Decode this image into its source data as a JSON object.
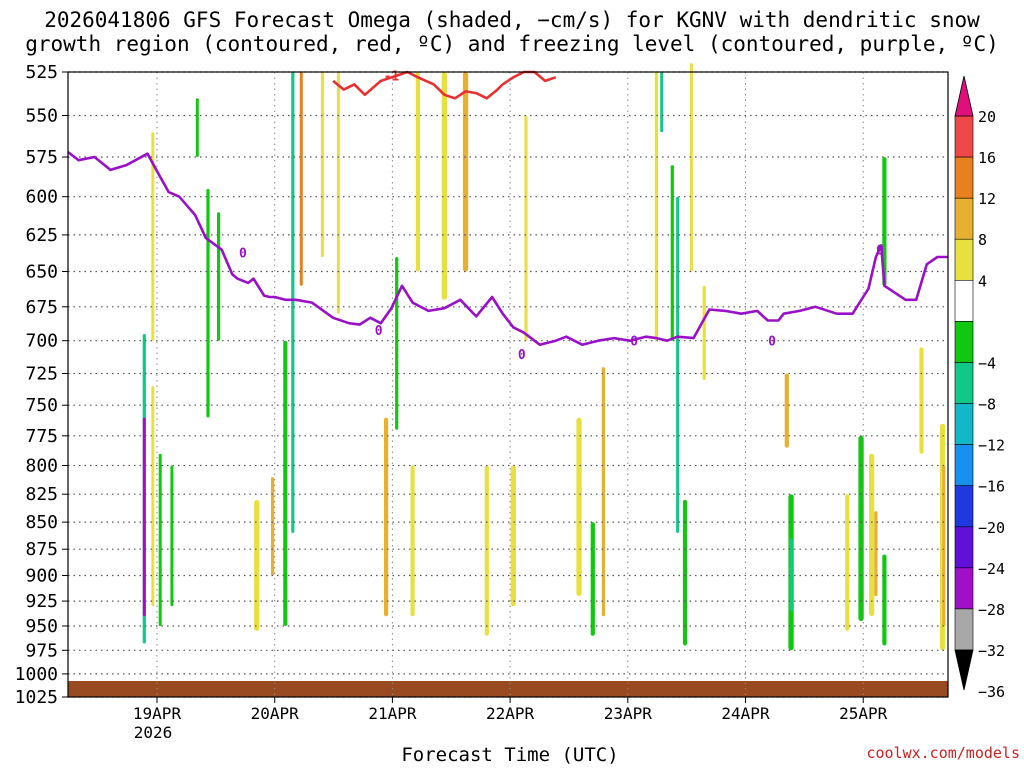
{
  "title_line1": "2026041806 GFS Forecast Omega (shaded, −cm/s) for KGNV with dendritic snow",
  "title_line2": "growth region (contoured, red, ºC) and freezing level (contoured, purple, ºC)",
  "x_axis_title": "Forecast Time (UTC)",
  "credit": "coolwx.com/models",
  "colors": {
    "snow_growth_contour": "#e83030",
    "freezing_level": "#9a10c8",
    "ground": "#9a4a20",
    "grid": "#555555"
  },
  "chart_data": {
    "type": "heatmap",
    "xlabel": "Forecast Time (UTC)",
    "ylabel": "",
    "y_axis_scale": "pressure (reversed)",
    "ylim": [
      1025,
      525
    ],
    "yticks": [
      525,
      550,
      575,
      600,
      625,
      650,
      675,
      700,
      725,
      750,
      775,
      800,
      825,
      850,
      875,
      900,
      925,
      950,
      975,
      1000,
      1025
    ],
    "xlim": [
      "18APR 06Z",
      "25APR 18Z"
    ],
    "xticks": [
      {
        "label": "19APR",
        "sublabel": "2026"
      },
      {
        "label": "20APR",
        "sublabel": ""
      },
      {
        "label": "21APR",
        "sublabel": ""
      },
      {
        "label": "22APR",
        "sublabel": ""
      },
      {
        "label": "23APR",
        "sublabel": ""
      },
      {
        "label": "24APR",
        "sublabel": ""
      },
      {
        "label": "25APR",
        "sublabel": ""
      }
    ],
    "grid": true,
    "colorbar": {
      "labels": [
        "20",
        "16",
        "12",
        "8",
        "4",
        "−4",
        "−8",
        "−12",
        "−16",
        "−20",
        "−24",
        "−28",
        "−32",
        "−36"
      ],
      "bands": [
        {
          "from": 16,
          "to": 20,
          "color": "#f04848"
        },
        {
          "from": 12,
          "to": 16,
          "color": "#e8801e"
        },
        {
          "from": 8,
          "to": 12,
          "color": "#e8b030"
        },
        {
          "from": 4,
          "to": 8,
          "color": "#e8e040"
        },
        {
          "from": -4,
          "to": 4,
          "color": "#ffffff"
        },
        {
          "from": -8,
          "to": -4,
          "color": "#10c810"
        },
        {
          "from": -12,
          "to": -8,
          "color": "#10c888"
        },
        {
          "from": -16,
          "to": -12,
          "color": "#10b8c8"
        },
        {
          "from": -20,
          "to": -16,
          "color": "#1890f0"
        },
        {
          "from": -24,
          "to": -20,
          "color": "#2038e0"
        },
        {
          "from": -28,
          "to": -24,
          "color": "#6010d8"
        },
        {
          "from": -32,
          "to": -28,
          "color": "#a010c8"
        },
        {
          "from": -36,
          "to": -32,
          "color": "#a8a8a8"
        }
      ],
      "top_arrow_color": "#e0107a",
      "bottom_arrow_color": "#000000"
    },
    "contour_labels": [
      {
        "text": "-1",
        "series": "Dendritic snow growth region",
        "x": 3.05,
        "y": 527
      },
      {
        "text": "0",
        "series": "Freezing level",
        "x": 1.65,
        "y": 637
      },
      {
        "text": "0",
        "series": "Freezing level",
        "x": 2.93,
        "y": 692
      },
      {
        "text": "0",
        "series": "Freezing level",
        "x": 4.28,
        "y": 710
      },
      {
        "text": "0",
        "series": "Freezing level",
        "x": 5.34,
        "y": 700
      },
      {
        "text": "0",
        "series": "Freezing level",
        "x": 6.64,
        "y": 700
      },
      {
        "text": "0",
        "series": "Freezing level",
        "x": 7.66,
        "y": 635
      }
    ],
    "series": [
      {
        "name": "Freezing level",
        "style": "line",
        "x": [
          0.0,
          0.1,
          0.25,
          0.4,
          0.55,
          0.75,
          0.85,
          0.95,
          1.05,
          1.2,
          1.3,
          1.45,
          1.55,
          1.6,
          1.7,
          1.75,
          1.85,
          1.9,
          1.95,
          2.05,
          2.15,
          2.3,
          2.5,
          2.65,
          2.75,
          2.85,
          2.95,
          3.05,
          3.15,
          3.25,
          3.4,
          3.55,
          3.7,
          3.85,
          4.0,
          4.1,
          4.2,
          4.3,
          4.45,
          4.6,
          4.7,
          4.85,
          5.0,
          5.15,
          5.3,
          5.45,
          5.55,
          5.65,
          5.75,
          5.9,
          6.05,
          6.2,
          6.35,
          6.5,
          6.6,
          6.7,
          6.75,
          6.9,
          7.05,
          7.25,
          7.4,
          7.55,
          7.62,
          7.67,
          7.7,
          7.78,
          7.9,
          8.0,
          8.1,
          8.2,
          8.3
        ],
        "y": [
          572,
          577,
          575,
          583,
          580,
          573,
          585,
          597,
          600,
          612,
          627,
          635,
          652,
          655,
          658,
          655,
          667,
          668,
          668,
          670,
          670,
          672,
          683,
          687,
          688,
          683,
          687,
          676,
          660,
          672,
          678,
          676,
          670,
          682,
          668,
          680,
          690,
          694,
          703,
          700,
          697,
          703,
          700,
          698,
          700,
          697,
          698,
          700,
          697,
          698,
          677,
          678,
          680,
          678,
          685,
          685,
          680,
          678,
          675,
          680,
          680,
          662,
          640,
          632,
          660,
          664,
          670,
          670,
          645,
          640,
          640
        ]
      },
      {
        "name": "Dendritic snow growth region",
        "style": "line",
        "x": [
          2.5,
          2.6,
          2.7,
          2.8,
          2.95,
          3.1,
          3.2,
          3.3,
          3.45,
          3.55,
          3.65,
          3.75,
          3.85,
          3.95,
          4.05,
          4.1,
          4.2,
          4.3,
          4.4,
          4.5,
          4.6
        ],
        "y": [
          530,
          535,
          532,
          538,
          530,
          527,
          525,
          528,
          532,
          538,
          540,
          536,
          537,
          540,
          535,
          532,
          528,
          525,
          525,
          530,
          528
        ]
      }
    ],
    "omega_regions": [
      {
        "x": 0.72,
        "y": [
          695,
          968
        ],
        "w": 0.03,
        "value": -12
      },
      {
        "x": 0.72,
        "y": [
          760,
          940
        ],
        "w": 0.018,
        "value": -30
      },
      {
        "x": 0.8,
        "y": [
          560,
          700
        ],
        "w": 0.02,
        "value": 6
      },
      {
        "x": 0.8,
        "y": [
          735,
          930
        ],
        "w": 0.02,
        "value": 6
      },
      {
        "x": 0.87,
        "y": [
          790,
          950
        ],
        "w": 0.02,
        "value": -6
      },
      {
        "x": 0.98,
        "y": [
          800,
          930
        ],
        "w": 0.02,
        "value": -6
      },
      {
        "x": 1.22,
        "y": [
          540,
          575
        ],
        "w": 0.02,
        "value": -6
      },
      {
        "x": 1.32,
        "y": [
          595,
          760
        ],
        "w": 0.03,
        "value": -6
      },
      {
        "x": 1.42,
        "y": [
          610,
          700
        ],
        "w": 0.03,
        "value": -6
      },
      {
        "x": 1.78,
        "y": [
          830,
          955
        ],
        "w": 0.05,
        "value": 6
      },
      {
        "x": 1.93,
        "y": [
          810,
          900
        ],
        "w": 0.03,
        "value": 10
      },
      {
        "x": 2.05,
        "y": [
          700,
          950
        ],
        "w": 0.04,
        "value": -6
      },
      {
        "x": 2.12,
        "y": [
          525,
          860
        ],
        "w": 0.03,
        "value": -12
      },
      {
        "x": 2.2,
        "y": [
          525,
          660
        ],
        "w": 0.02,
        "value": 12
      },
      {
        "x": 2.4,
        "y": [
          525,
          640
        ],
        "w": 0.03,
        "value": 6
      },
      {
        "x": 2.55,
        "y": [
          525,
          680
        ],
        "w": 0.02,
        "value": 6
      },
      {
        "x": 3.0,
        "y": [
          760,
          940
        ],
        "w": 0.04,
        "value": 10
      },
      {
        "x": 3.1,
        "y": [
          640,
          770
        ],
        "w": 0.03,
        "value": -6
      },
      {
        "x": 3.25,
        "y": [
          800,
          940
        ],
        "w": 0.04,
        "value": 6
      },
      {
        "x": 3.3,
        "y": [
          525,
          650
        ],
        "w": 0.04,
        "value": 6
      },
      {
        "x": 3.55,
        "y": [
          525,
          670
        ],
        "w": 0.05,
        "value": 6
      },
      {
        "x": 3.75,
        "y": [
          525,
          650
        ],
        "w": 0.05,
        "value": 10
      },
      {
        "x": 3.95,
        "y": [
          800,
          960
        ],
        "w": 0.04,
        "value": 6
      },
      {
        "x": 4.2,
        "y": [
          800,
          930
        ],
        "w": 0.05,
        "value": 6
      },
      {
        "x": 4.32,
        "y": [
          550,
          700
        ],
        "w": 0.03,
        "value": 6
      },
      {
        "x": 4.82,
        "y": [
          760,
          920
        ],
        "w": 0.05,
        "value": 6
      },
      {
        "x": 4.95,
        "y": [
          850,
          960
        ],
        "w": 0.04,
        "value": -6
      },
      {
        "x": 5.05,
        "y": [
          720,
          940
        ],
        "w": 0.03,
        "value": 10
      },
      {
        "x": 5.55,
        "y": [
          525,
          700
        ],
        "w": 0.03,
        "value": 6
      },
      {
        "x": 5.6,
        "y": [
          525,
          560
        ],
        "w": 0.02,
        "value": -12
      },
      {
        "x": 5.7,
        "y": [
          580,
          700
        ],
        "w": 0.03,
        "value": -6
      },
      {
        "x": 5.75,
        "y": [
          600,
          860
        ],
        "w": 0.02,
        "value": -12
      },
      {
        "x": 5.82,
        "y": [
          830,
          970
        ],
        "w": 0.04,
        "value": -6
      },
      {
        "x": 5.88,
        "y": [
          520,
          650
        ],
        "w": 0.02,
        "value": 6
      },
      {
        "x": 6.0,
        "y": [
          660,
          730
        ],
        "w": 0.03,
        "value": 6
      },
      {
        "x": 6.78,
        "y": [
          725,
          785
        ],
        "w": 0.04,
        "value": 10
      },
      {
        "x": 6.82,
        "y": [
          825,
          975
        ],
        "w": 0.05,
        "value": -6
      },
      {
        "x": 6.82,
        "y": [
          865,
          935
        ],
        "w": 0.03,
        "value": -10
      },
      {
        "x": 7.35,
        "y": [
          825,
          955
        ],
        "w": 0.04,
        "value": 6
      },
      {
        "x": 7.48,
        "y": [
          775,
          945
        ],
        "w": 0.05,
        "value": -6
      },
      {
        "x": 7.58,
        "y": [
          790,
          940
        ],
        "w": 0.05,
        "value": 6
      },
      {
        "x": 7.62,
        "y": [
          840,
          920
        ],
        "w": 0.03,
        "value": 10
      },
      {
        "x": 7.7,
        "y": [
          880,
          970
        ],
        "w": 0.04,
        "value": -6
      },
      {
        "x": 7.7,
        "y": [
          575,
          660
        ],
        "w": 0.04,
        "value": -6
      },
      {
        "x": 8.05,
        "y": [
          705,
          790
        ],
        "w": 0.04,
        "value": 6
      },
      {
        "x": 8.25,
        "y": [
          765,
          975
        ],
        "w": 0.05,
        "value": 6
      },
      {
        "x": 8.26,
        "y": [
          800,
          950
        ],
        "w": 0.03,
        "value": 10
      }
    ]
  }
}
